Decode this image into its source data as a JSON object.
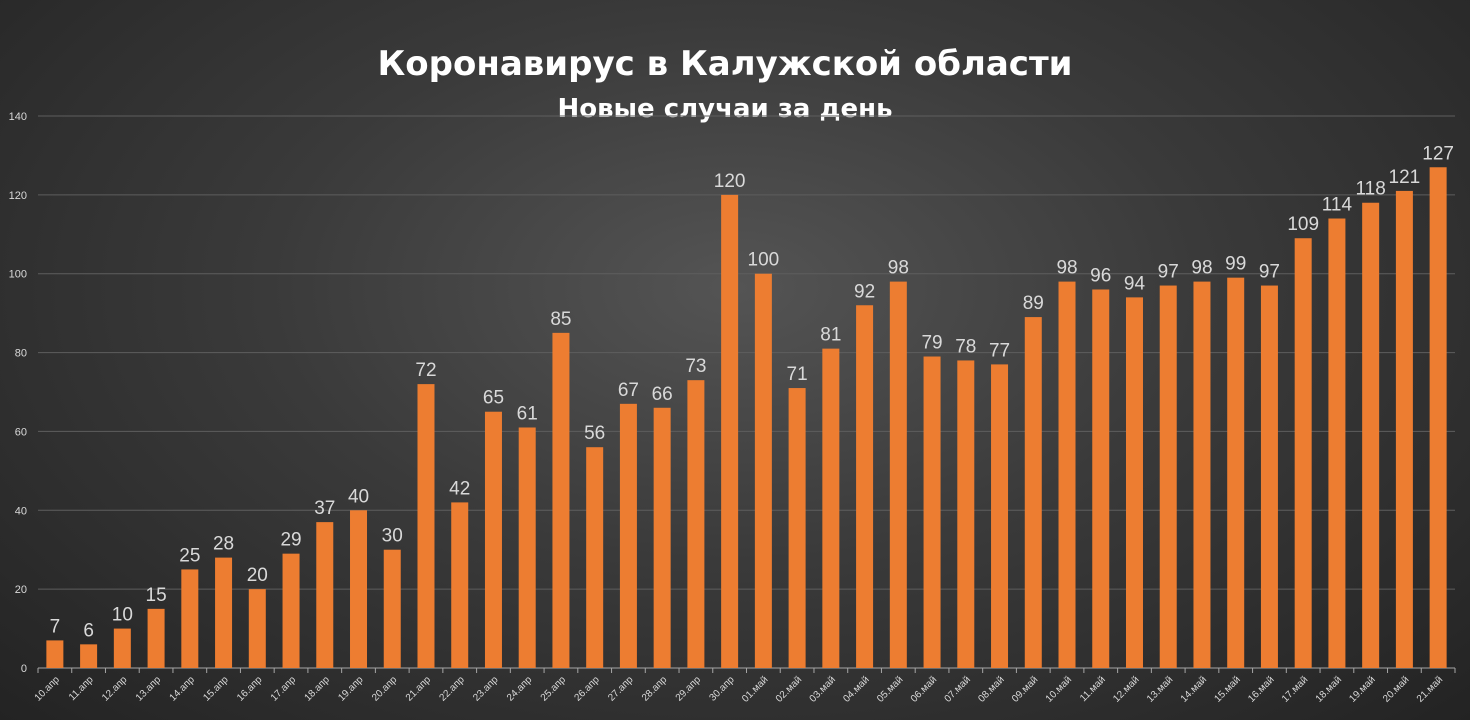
{
  "chart_data": {
    "type": "bar",
    "title": "Коронавирус в Калужской области",
    "subtitle": "Новые случаи за день",
    "xlabel": "",
    "ylabel": "",
    "ylim": [
      0,
      140
    ],
    "yticks": [
      0,
      20,
      40,
      60,
      80,
      100,
      120,
      140
    ],
    "grid": true,
    "bar_color": "#ed7d31",
    "categories": [
      "10.апр",
      "11.апр",
      "12.апр",
      "13.апр",
      "14.апр",
      "15.апр",
      "16.апр",
      "17.апр",
      "18.апр",
      "19.апр",
      "20.апр",
      "21.апр",
      "22.апр",
      "23.апр",
      "24.апр",
      "25.апр",
      "26.апр",
      "27.апр",
      "28.апр",
      "29.апр",
      "30.апр",
      "01.май",
      "02.май",
      "03.май",
      "04.май",
      "05.май",
      "06.май",
      "07.май",
      "08.май",
      "09.май",
      "10.май",
      "11.май",
      "12.май",
      "13.май",
      "14.май",
      "15.май",
      "16.май",
      "17.май",
      "18.май",
      "19.май",
      "20.май",
      "21.май"
    ],
    "values": [
      7,
      6,
      10,
      15,
      25,
      28,
      20,
      29,
      37,
      40,
      30,
      72,
      42,
      65,
      61,
      85,
      56,
      67,
      66,
      73,
      120,
      100,
      71,
      81,
      92,
      98,
      79,
      78,
      77,
      89,
      98,
      96,
      94,
      97,
      98,
      99,
      97,
      109,
      114,
      118,
      121,
      127
    ]
  }
}
